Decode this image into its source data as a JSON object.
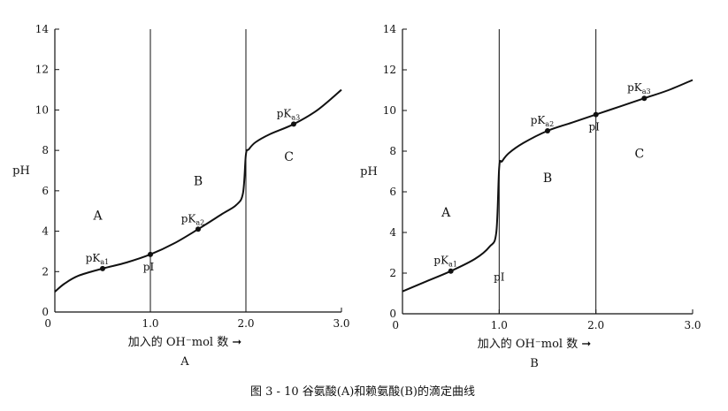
{
  "caption": "图 3 - 10   谷氨酸(A)和赖氨酸(B)的滴定曲线",
  "chart_data": [
    {
      "type": "line",
      "panel_label": "A",
      "ylabel": "pH",
      "xlabel": "加入的 OH⁻mol 数 ➞",
      "xlim": [
        0,
        3.0
      ],
      "ylim": [
        0,
        14
      ],
      "x_ticks": [
        "0",
        "1.0",
        "2.0",
        "3.0"
      ],
      "y_ticks": [
        "0",
        "2",
        "4",
        "6",
        "8",
        "10",
        "12",
        "14"
      ],
      "vlines": [
        1.0,
        2.0
      ],
      "series": [
        {
          "x": [
            0,
            0.1,
            0.25,
            0.5,
            0.75,
            1.0,
            1.25,
            1.5,
            1.75,
            1.9,
            1.97,
            2.0,
            2.03,
            2.1,
            2.25,
            2.5,
            2.75,
            3.0
          ],
          "y": [
            1.0,
            1.4,
            1.8,
            2.15,
            2.45,
            2.85,
            3.4,
            4.1,
            4.85,
            5.3,
            5.9,
            7.8,
            8.05,
            8.4,
            8.8,
            9.3,
            10.0,
            11.0
          ]
        }
      ],
      "points": [
        {
          "x": 0.5,
          "y": 2.15,
          "label": "pK",
          "sub": "a1"
        },
        {
          "x": 1.0,
          "y": 2.85,
          "label": "pI",
          "sub": ""
        },
        {
          "x": 1.5,
          "y": 4.1,
          "label": "pK",
          "sub": "a2"
        },
        {
          "x": 2.5,
          "y": 9.3,
          "label": "pK",
          "sub": "a3"
        }
      ],
      "regions": [
        {
          "label": "A",
          "x": 0.45,
          "y": 4.8
        },
        {
          "label": "B",
          "x": 1.5,
          "y": 6.5
        },
        {
          "label": "C",
          "x": 2.45,
          "y": 7.7
        }
      ]
    },
    {
      "type": "line",
      "panel_label": "B",
      "ylabel": "pH",
      "xlabel": "加入的 OH⁻mol 数 ➞",
      "xlim": [
        0,
        3.0
      ],
      "ylim": [
        0,
        14
      ],
      "x_ticks": [
        "0",
        "1.0",
        "2.0",
        "3.0"
      ],
      "y_ticks": [
        "0",
        "2",
        "4",
        "6",
        "8",
        "10",
        "12",
        "14"
      ],
      "vlines": [
        1.0,
        2.0
      ],
      "series": [
        {
          "x": [
            0,
            0.25,
            0.5,
            0.75,
            0.9,
            0.97,
            1.0,
            1.03,
            1.1,
            1.25,
            1.5,
            1.75,
            2.0,
            2.25,
            2.5,
            2.75,
            3.0
          ],
          "y": [
            1.1,
            1.6,
            2.1,
            2.7,
            3.3,
            4.0,
            7.2,
            7.5,
            7.9,
            8.4,
            9.0,
            9.4,
            9.8,
            10.2,
            10.6,
            11.0,
            11.5
          ]
        }
      ],
      "points": [
        {
          "x": 0.5,
          "y": 2.1,
          "label": "pK",
          "sub": "a1"
        },
        {
          "x": 1.5,
          "y": 9.0,
          "label": "pK",
          "sub": "a2"
        },
        {
          "x": 2.0,
          "y": 9.8,
          "label": "pI",
          "sub": ""
        },
        {
          "x": 2.5,
          "y": 10.6,
          "label": "pK",
          "sub": "a3"
        }
      ],
      "extra_labels": [
        {
          "label": "pI",
          "x": 1.0,
          "y": 1.8
        }
      ],
      "regions": [
        {
          "label": "A",
          "x": 0.45,
          "y": 5.0
        },
        {
          "label": "B",
          "x": 1.5,
          "y": 6.7
        },
        {
          "label": "C",
          "x": 2.45,
          "y": 7.9
        }
      ]
    }
  ]
}
